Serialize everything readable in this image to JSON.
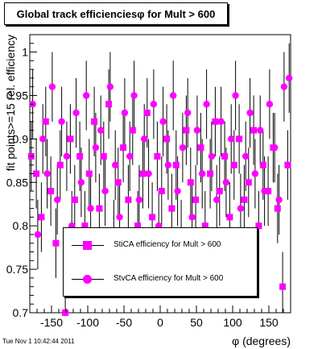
{
  "title": "Global track efficienciesφ for Mult > 600",
  "timestamp": "Tue Nov  1 10:42:44 2011",
  "colors": {
    "marker": "#ff00ff",
    "axis": "#000000"
  },
  "chart_data": {
    "type": "scatter",
    "xlabel": "φ (degrees)",
    "ylabel": "fit points>=15 rel. efficiency",
    "xlim": [
      -180,
      180
    ],
    "ylim": [
      0.7,
      1.02
    ],
    "xticks": [
      -150,
      -100,
      -50,
      0,
      50,
      100,
      150
    ],
    "xtick_labels": [
      "-150",
      "-100",
      "-50",
      "0",
      "50",
      "100",
      "150"
    ],
    "yticks": [
      0.7,
      0.75,
      0.8,
      0.85,
      0.9,
      0.95,
      1.0
    ],
    "ytick_labels": [
      "0.7",
      "0.75",
      "0.8",
      "0.85",
      "0.9",
      "0.95",
      "1"
    ],
    "grid": false,
    "legend_position": "bottom-center",
    "error_bars": true,
    "series": [
      {
        "name": "StiCA efficiency  for Mult > 600",
        "marker": "square",
        "x": [
          -178,
          -171,
          -164,
          -158,
          -151,
          -144,
          -138,
          -131,
          -124,
          -118,
          -111,
          -104,
          -98,
          -91,
          -84,
          -78,
          -71,
          -64,
          -58,
          -51,
          -44,
          -38,
          -31,
          -24,
          -18,
          -11,
          -4,
          2,
          9,
          16,
          22,
          29,
          36,
          42,
          49,
          56,
          62,
          69,
          76,
          82,
          89,
          96,
          102,
          109,
          116,
          122,
          129,
          136,
          142,
          149,
          156,
          162,
          169,
          176
        ],
        "y": [
          0.88,
          0.86,
          0.81,
          0.92,
          0.84,
          0.78,
          0.87,
          0.7,
          0.9,
          0.83,
          0.88,
          0.8,
          0.86,
          0.92,
          0.82,
          0.88,
          0.94,
          0.79,
          0.85,
          0.89,
          0.83,
          0.91,
          0.8,
          0.86,
          0.93,
          0.81,
          0.88,
          0.84,
          0.9,
          0.82,
          0.87,
          0.79,
          0.91,
          0.85,
          0.83,
          0.89,
          0.8,
          0.86,
          0.92,
          0.84,
          0.88,
          0.81,
          0.87,
          0.9,
          0.83,
          0.85,
          0.91,
          0.8,
          0.87,
          0.84,
          0.89,
          0.82,
          0.73,
          0.87
        ],
        "yerr": [
          0.04,
          0.04,
          0.04,
          0.04,
          0.04,
          0.04,
          0.04,
          0.04,
          0.04,
          0.04,
          0.04,
          0.04,
          0.04,
          0.04,
          0.04,
          0.04,
          0.04,
          0.04,
          0.04,
          0.04,
          0.04,
          0.04,
          0.04,
          0.04,
          0.04,
          0.04,
          0.04,
          0.04,
          0.04,
          0.04,
          0.04,
          0.04,
          0.04,
          0.04,
          0.04,
          0.04,
          0.04,
          0.04,
          0.04,
          0.04,
          0.04,
          0.04,
          0.04,
          0.04,
          0.04,
          0.04,
          0.04,
          0.04,
          0.04,
          0.04,
          0.04,
          0.04,
          0.04,
          0.04
        ]
      },
      {
        "name": "StvCA efficiency  for Mult > 600",
        "marker": "circle",
        "x": [
          -176,
          -169,
          -162,
          -156,
          -149,
          -142,
          -136,
          -129,
          -122,
          -116,
          -109,
          -102,
          -96,
          -89,
          -82,
          -76,
          -69,
          -62,
          -56,
          -49,
          -42,
          -36,
          -29,
          -22,
          -16,
          -9,
          -2,
          4,
          11,
          18,
          24,
          31,
          38,
          44,
          51,
          58,
          64,
          71,
          78,
          84,
          91,
          98,
          104,
          111,
          118,
          124,
          131,
          138,
          144,
          151,
          158,
          164,
          171,
          178
        ],
        "y": [
          0.94,
          0.79,
          0.9,
          0.86,
          0.96,
          0.83,
          0.92,
          0.88,
          0.8,
          0.93,
          0.85,
          0.95,
          0.82,
          0.89,
          0.91,
          0.84,
          0.96,
          0.87,
          0.81,
          0.93,
          0.88,
          0.95,
          0.83,
          0.9,
          0.86,
          0.94,
          0.8,
          0.92,
          0.87,
          0.95,
          0.84,
          0.89,
          0.93,
          0.81,
          0.91,
          0.86,
          0.94,
          0.88,
          0.83,
          0.92,
          0.85,
          0.9,
          0.95,
          0.82,
          0.88,
          0.93,
          0.86,
          0.91,
          0.84,
          0.94,
          0.89,
          0.83,
          0.96,
          0.97
        ],
        "yerr": [
          0.04,
          0.04,
          0.04,
          0.04,
          0.04,
          0.04,
          0.04,
          0.04,
          0.04,
          0.04,
          0.04,
          0.04,
          0.04,
          0.04,
          0.04,
          0.04,
          0.04,
          0.04,
          0.04,
          0.04,
          0.04,
          0.04,
          0.04,
          0.04,
          0.04,
          0.04,
          0.04,
          0.04,
          0.04,
          0.04,
          0.04,
          0.04,
          0.04,
          0.04,
          0.04,
          0.04,
          0.04,
          0.04,
          0.04,
          0.04,
          0.04,
          0.04,
          0.04,
          0.04,
          0.04,
          0.04,
          0.04,
          0.04,
          0.04,
          0.04,
          0.04,
          0.04,
          0.04,
          0.04
        ]
      }
    ]
  }
}
